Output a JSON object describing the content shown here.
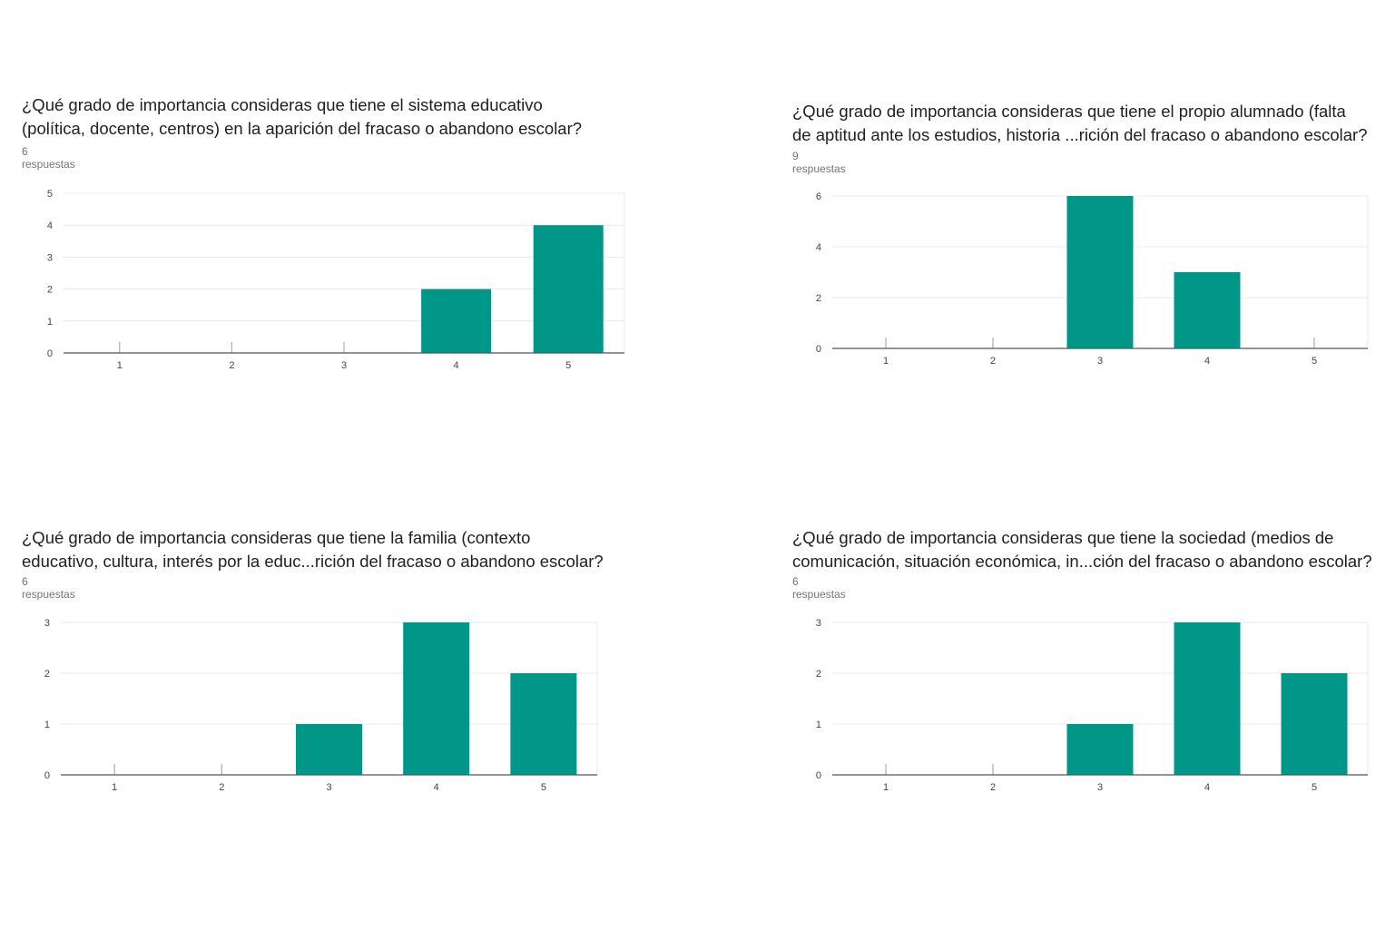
{
  "colors": {
    "bar": "#009688",
    "grid": "#e8e8e8",
    "axis": "#555555"
  },
  "panels": [
    {
      "title_line1": "¿Qué grado de importancia consideras que tiene el sistema educativo",
      "title_line2": "(política, docente, centros) en la aparición del fracaso o abandono escolar?",
      "responses": "6 respuestas"
    },
    {
      "title_line1": "¿Qué grado de importancia consideras que tiene el propio alumnado (falta",
      "title_line2": "de aptitud ante los estudios, historia ...rición del fracaso o abandono escolar?",
      "responses": "9 respuestas"
    },
    {
      "title_line1": "¿Qué grado de importancia consideras que tiene la familia (contexto",
      "title_line2": "educativo, cultura, interés por la educ...rición del fracaso o abandono escolar?",
      "responses": "6 respuestas"
    },
    {
      "title_line1": "¿Qué grado de importancia consideras que tiene la sociedad (medios de",
      "title_line2": "comunicación, situación económica, in...ción del fracaso o abandono escolar?",
      "responses": "6 respuestas"
    }
  ],
  "chart_data": [
    {
      "type": "bar",
      "categories": [
        "1",
        "2",
        "3",
        "4",
        "5"
      ],
      "values": [
        0,
        0,
        0,
        2,
        4
      ],
      "ylim": [
        0,
        5
      ],
      "yticks": [
        0,
        1,
        2,
        3,
        4,
        5
      ],
      "grid": true
    },
    {
      "type": "bar",
      "categories": [
        "1",
        "2",
        "3",
        "4",
        "5"
      ],
      "values": [
        0,
        0,
        6,
        3,
        0
      ],
      "ylim": [
        0,
        6
      ],
      "yticks": [
        0,
        2,
        4,
        6
      ],
      "grid": true
    },
    {
      "type": "bar",
      "categories": [
        "1",
        "2",
        "3",
        "4",
        "5"
      ],
      "values": [
        0,
        0,
        1,
        3,
        2
      ],
      "ylim": [
        0,
        3
      ],
      "yticks": [
        0,
        1,
        2,
        3
      ],
      "grid": true
    },
    {
      "type": "bar",
      "categories": [
        "1",
        "2",
        "3",
        "4",
        "5"
      ],
      "values": [
        0,
        0,
        1,
        3,
        2
      ],
      "ylim": [
        0,
        3
      ],
      "yticks": [
        0,
        1,
        2,
        3
      ],
      "grid": true
    }
  ]
}
